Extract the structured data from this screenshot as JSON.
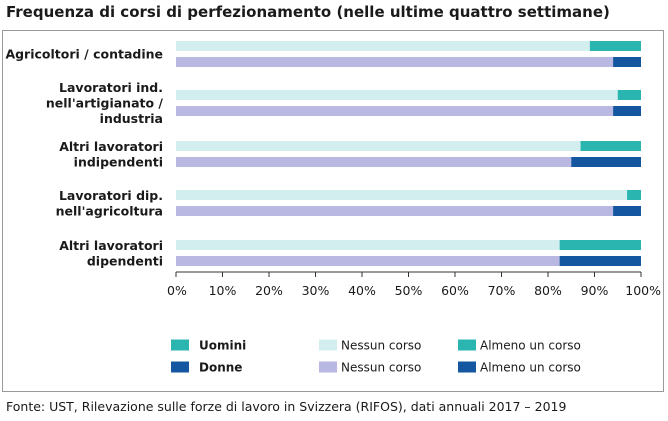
{
  "title": "Frequenza di corsi di perfezionamento (nelle ultime quattro settimane)",
  "source": "Fonte: UST, Rilevazione sulle forze di lavoro in Svizzera (RIFOS), dati annuali 2017 – 2019",
  "colors": {
    "men_none": "#d2eeee",
    "men_some": "#2bb5b0",
    "women_none": "#b8b8e2",
    "women_some": "#1457a0"
  },
  "chart_data": {
    "type": "bar",
    "orientation": "horizontal",
    "stacked": true,
    "percent_scale": true,
    "categories": [
      [
        "Agricoltori / contadine"
      ],
      [
        "Lavoratori ind.",
        "nell'artigianato /",
        "industria"
      ],
      [
        "Altri lavoratori",
        "indipendenti"
      ],
      [
        "Lavoratori dip.",
        "nell'agricoltura"
      ],
      [
        "Altri lavoratori",
        "dipendenti"
      ]
    ],
    "series": [
      {
        "group": "Uomini",
        "name": "Nessun corso",
        "values": [
          89,
          95,
          87,
          97,
          82.5
        ]
      },
      {
        "group": "Uomini",
        "name": "Almeno un corso",
        "values": [
          11,
          5,
          13,
          3,
          17.5
        ]
      },
      {
        "group": "Donne",
        "name": "Nessun corso",
        "values": [
          94,
          94,
          85,
          94,
          82.5
        ]
      },
      {
        "group": "Donne",
        "name": "Almeno un corso",
        "values": [
          6,
          6,
          15,
          6,
          17.5
        ]
      }
    ],
    "xlim": [
      0,
      100
    ],
    "xticks": [
      "0%",
      "10%",
      "20%",
      "30%",
      "40%",
      "50%",
      "60%",
      "70%",
      "80%",
      "90%",
      "100%"
    ],
    "legend": {
      "placement": "bottom",
      "groups": [
        "Uomini",
        "Donne"
      ],
      "entries": [
        "Nessun corso",
        "Almeno un corso"
      ]
    }
  }
}
